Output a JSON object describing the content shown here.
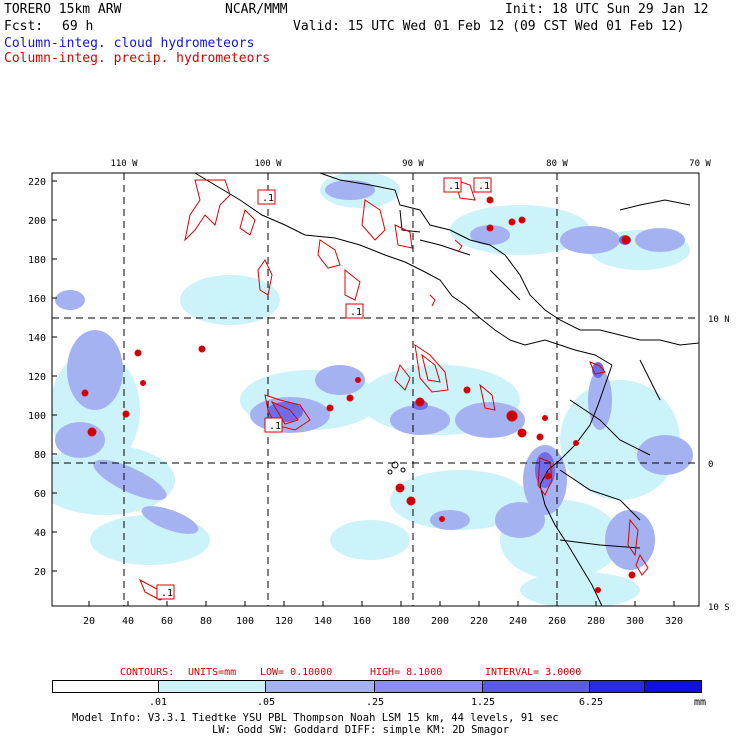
{
  "header": {
    "model": "TORERO  15km ARW",
    "center": "NCAR/MMM",
    "init": "Init: 18 UTC Sun 29 Jan 12",
    "fcst_label": "Fcst:",
    "fcst_value": "69 h",
    "valid": "Valid: 15 UTC Wed 01 Feb 12 (09 CST Wed 01 Feb 12)",
    "field_cloud": "Column-integ. cloud hydrometeors",
    "field_precip": "Column-integ. precip. hydrometeors"
  },
  "map": {
    "lon_labels": [
      "110 W",
      "100 W",
      "90 W",
      "80 W",
      "70 W"
    ],
    "lat_labels": [
      "10 N",
      "0",
      "10 S"
    ],
    "y_ticks": [
      "220",
      "200",
      "180",
      "160",
      "140",
      "120",
      "100",
      "80",
      "60",
      "40",
      "20"
    ],
    "x_ticks": [
      "20",
      "40",
      "60",
      "80",
      "100",
      "120",
      "140",
      "160",
      "180",
      "200",
      "220",
      "240",
      "260",
      "280",
      "300",
      "320"
    ],
    "contour_labels": [
      ".1",
      ".1",
      ".1",
      ".1",
      ".1",
      ".1"
    ],
    "colors": {
      "cloud_light": "#ccf2fa",
      "cloud_mid": "#a4b2f2",
      "cloud_dark": "#7d86ec",
      "cloud_deeper": "#5a5ae8",
      "precip_contour": "#e00000",
      "coast": "#000000"
    }
  },
  "contour_info": {
    "label": "CONTOURS:",
    "units": "UNITS=mm",
    "low": "LOW= 0.10000",
    "high": "HIGH=  8.1000",
    "interval": "INTERVAL= 3.0000"
  },
  "colorbar": {
    "labels": [
      ".01",
      ".05",
      ".25",
      "1.25",
      "6.25"
    ],
    "unit": "mm",
    "colors": [
      "#ffffff",
      "#ccf2fa",
      "#a4b2f2",
      "#8a8cf0",
      "#5a5ae8",
      "#2a2ae6",
      "#1010e4"
    ]
  },
  "footer": {
    "line1": "Model Info: V3.3.1    Tiedtke YSU PBL  Thompson    Noah LSM  15 km,   44 levels,   91 sec",
    "line2": "LW: Godd SW: Goddard DIFF: simple KM: 2D Smagor"
  }
}
